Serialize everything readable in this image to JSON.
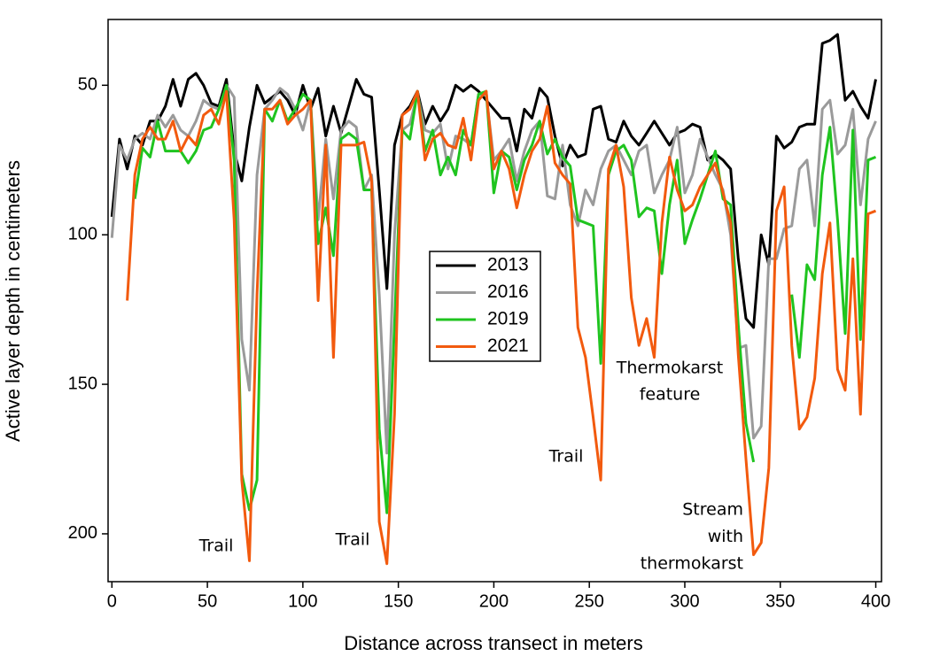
{
  "chart_data": {
    "type": "line",
    "xlabel": "Distance across transect in meters",
    "ylabel": "Active layer depth in centimeters",
    "xlim": [
      -2,
      403
    ],
    "ylim": [
      28,
      216
    ],
    "y_inverted": true,
    "xticks": [
      0,
      50,
      100,
      150,
      200,
      250,
      300,
      350,
      400
    ],
    "yticks": [
      50,
      100,
      150,
      200
    ],
    "grid": false,
    "legend_position": "center",
    "x": [
      0,
      4,
      8,
      12,
      16,
      20,
      24,
      28,
      32,
      36,
      40,
      44,
      48,
      52,
      56,
      60,
      64,
      68,
      72,
      76,
      80,
      84,
      88,
      92,
      96,
      100,
      104,
      108,
      112,
      116,
      120,
      124,
      128,
      132,
      136,
      140,
      144,
      148,
      152,
      156,
      160,
      164,
      168,
      172,
      176,
      180,
      184,
      188,
      192,
      196,
      200,
      204,
      208,
      212,
      216,
      220,
      224,
      228,
      232,
      236,
      240,
      244,
      248,
      252,
      256,
      260,
      264,
      268,
      272,
      276,
      280,
      284,
      288,
      292,
      296,
      300,
      304,
      308,
      312,
      316,
      320,
      324,
      328,
      332,
      336,
      340,
      344,
      348,
      352,
      356,
      360,
      364,
      368,
      372,
      376,
      380,
      384,
      388,
      392,
      396,
      400
    ],
    "series": [
      {
        "name": "2013",
        "color": "#000000",
        "values": [
          94,
          68,
          78,
          67,
          70,
          62,
          62,
          57,
          48,
          57,
          48,
          46,
          50,
          56,
          57,
          48,
          72,
          82,
          64,
          50,
          56,
          54,
          52,
          55,
          60,
          50,
          58,
          51,
          67,
          57,
          66,
          57,
          48,
          53,
          54,
          85,
          118,
          70,
          60,
          57,
          52,
          63,
          57,
          62,
          58,
          50,
          52,
          50,
          52,
          55,
          58,
          61,
          61,
          72,
          58,
          61,
          51,
          54,
          67,
          77,
          70,
          74,
          73,
          58,
          57,
          68,
          69,
          62,
          67,
          70,
          66,
          62,
          66,
          70,
          66,
          65,
          63,
          64,
          75,
          73,
          75,
          78,
          108,
          128,
          131,
          100,
          110,
          67,
          71,
          69,
          64,
          63,
          63,
          36,
          35,
          33,
          55,
          52,
          57,
          61,
          48
        ]
      },
      {
        "name": "2016",
        "color": "#9a9a9a",
        "values": [
          101,
          70,
          75,
          68,
          66,
          68,
          60,
          64,
          60,
          65,
          67,
          62,
          55,
          57,
          58,
          50,
          54,
          135,
          152,
          80,
          58,
          55,
          51,
          53,
          58,
          65,
          55,
          95,
          68,
          88,
          65,
          62,
          64,
          85,
          80,
          120,
          173,
          100,
          65,
          63,
          53,
          65,
          66,
          63,
          78,
          67,
          68,
          70,
          53,
          53,
          75,
          72,
          68,
          82,
          72,
          65,
          62,
          87,
          88,
          70,
          90,
          97,
          85,
          90,
          78,
          72,
          70,
          75,
          80,
          72,
          70,
          86,
          80,
          75,
          64,
          86,
          80,
          68,
          74,
          80,
          85,
          100,
          138,
          137,
          168,
          164,
          108,
          108,
          98,
          97,
          78,
          75,
          97,
          58,
          55,
          73,
          70,
          58,
          90,
          68,
          62
        ]
      },
      {
        "name": "2019",
        "color": "#1fc41f",
        "values": [
          null,
          null,
          null,
          88,
          71,
          74,
          62,
          72,
          72,
          72,
          76,
          72,
          65,
          64,
          58,
          50,
          75,
          180,
          192,
          182,
          58,
          62,
          55,
          62,
          58,
          53,
          55,
          103,
          91,
          107,
          68,
          66,
          68,
          85,
          85,
          165,
          193,
          130,
          65,
          68,
          52,
          72,
          65,
          80,
          74,
          80,
          65,
          70,
          53,
          52,
          86,
          72,
          74,
          85,
          75,
          70,
          62,
          73,
          68,
          74,
          77,
          95,
          96,
          97,
          143,
          80,
          72,
          70,
          75,
          94,
          91,
          92,
          113,
          90,
          75,
          103,
          95,
          88,
          80,
          72,
          88,
          90,
          130,
          163,
          176,
          null,
          null,
          null,
          null,
          120,
          141,
          110,
          115,
          80,
          64,
          95,
          133,
          65,
          135,
          75,
          74
        ]
      },
      {
        "name": "2021",
        "color": "#f25a0e",
        "values": [
          null,
          null,
          122,
          80,
          68,
          64,
          68,
          68,
          62,
          72,
          67,
          70,
          60,
          58,
          63,
          52,
          95,
          182,
          209,
          120,
          58,
          58,
          55,
          63,
          60,
          58,
          55,
          122,
          70,
          141,
          70,
          70,
          70,
          69,
          82,
          196,
          210,
          160,
          60,
          58,
          52,
          75,
          68,
          66,
          70,
          71,
          61,
          75,
          55,
          52,
          78,
          72,
          78,
          91,
          80,
          72,
          68,
          57,
          76,
          80,
          83,
          131,
          141,
          161,
          182,
          78,
          70,
          84,
          121,
          137,
          128,
          141,
          96,
          74,
          85,
          92,
          90,
          84,
          80,
          76,
          86,
          96,
          140,
          175,
          207,
          203,
          178,
          92,
          84,
          137,
          165,
          161,
          148,
          113,
          96,
          145,
          152,
          108,
          160,
          93,
          92
        ]
      }
    ],
    "annotations": [
      {
        "lines": [
          "Trail"
        ]
      },
      {
        "lines": [
          "Trail"
        ]
      },
      {
        "lines": [
          "Trail"
        ]
      },
      {
        "lines": [
          "Thermokarst",
          "feature"
        ]
      },
      {
        "lines": [
          "Stream",
          "with",
          "thermokarst"
        ]
      }
    ]
  }
}
